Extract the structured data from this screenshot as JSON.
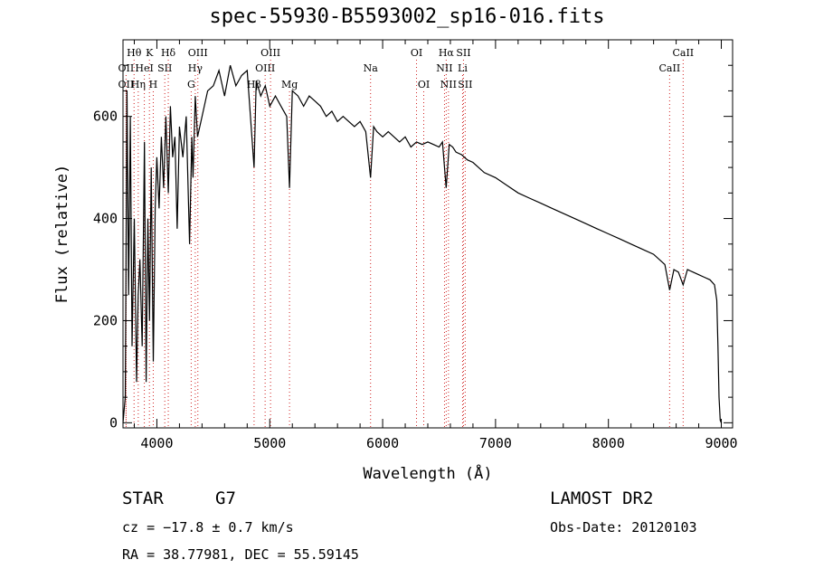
{
  "title": "spec-55930-B5593002_sp16-016.fits",
  "info": {
    "class": "STAR",
    "subclass": "G7",
    "cz": "cz = −17.8 ± 0.7 km/s",
    "radec": "RA =  38.77981, DEC =  55.59145",
    "survey": "LAMOST DR2",
    "obsdate": "Obs-Date: 20120103"
  },
  "chart_data": {
    "type": "line",
    "title": "spec-55930-B5593002_sp16-016.fits",
    "xlabel": "Wavelength (Å)",
    "ylabel": "Flux (relative)",
    "xlim": [
      3700,
      9100
    ],
    "ylim": [
      -10,
      750
    ],
    "xticks": [
      4000,
      5000,
      6000,
      7000,
      8000,
      9000
    ],
    "yticks": [
      0,
      200,
      400,
      600
    ],
    "grid": false,
    "series": [
      {
        "x": [
          3700,
          3720,
          3735,
          3750,
          3765,
          3780,
          3800,
          3820,
          3835,
          3850,
          3870,
          3890,
          3905,
          3920,
          3935,
          3950,
          3968,
          3985,
          4000,
          4020,
          4040,
          4060,
          4080,
          4101,
          4120,
          4140,
          4160,
          4180,
          4200,
          4230,
          4260,
          4290,
          4310,
          4320,
          4340,
          4360,
          4400,
          4450,
          4500,
          4550,
          4600,
          4650,
          4700,
          4750,
          4800,
          4861,
          4880,
          4920,
          4960,
          5000,
          5050,
          5100,
          5150,
          5175,
          5200,
          5250,
          5300,
          5350,
          5400,
          5450,
          5500,
          5550,
          5600,
          5650,
          5700,
          5750,
          5800,
          5850,
          5893,
          5920,
          5950,
          6000,
          6050,
          6100,
          6150,
          6200,
          6250,
          6300,
          6350,
          6400,
          6450,
          6500,
          6530,
          6563,
          6590,
          6620,
          6650,
          6700,
          6750,
          6800,
          6900,
          7000,
          7100,
          7200,
          7300,
          7400,
          7500,
          7600,
          7700,
          7800,
          7900,
          8000,
          8100,
          8200,
          8300,
          8400,
          8500,
          8542,
          8580,
          8620,
          8662,
          8700,
          8750,
          8800,
          8850,
          8900,
          8940,
          8960,
          8970,
          8980,
          8990,
          9000,
          9005
        ],
        "y": [
          0,
          50,
          650,
          250,
          600,
          150,
          400,
          80,
          250,
          320,
          150,
          550,
          80,
          400,
          200,
          500,
          120,
          420,
          520,
          420,
          560,
          460,
          600,
          450,
          620,
          520,
          560,
          380,
          580,
          520,
          600,
          350,
          560,
          480,
          640,
          560,
          600,
          650,
          660,
          690,
          640,
          700,
          660,
          680,
          690,
          500,
          670,
          640,
          660,
          620,
          640,
          620,
          600,
          460,
          650,
          640,
          620,
          640,
          630,
          620,
          600,
          610,
          590,
          600,
          590,
          580,
          590,
          570,
          480,
          580,
          570,
          560,
          570,
          560,
          550,
          560,
          540,
          550,
          545,
          550,
          545,
          540,
          550,
          460,
          545,
          540,
          530,
          525,
          515,
          510,
          490,
          480,
          465,
          450,
          440,
          430,
          420,
          410,
          400,
          390,
          380,
          370,
          360,
          350,
          340,
          330,
          310,
          260,
          300,
          295,
          270,
          300,
          295,
          290,
          285,
          280,
          270,
          240,
          150,
          50,
          5,
          0,
          0
        ]
      }
    ],
    "lines": [
      {
        "label": "Hθ",
        "x": 3798,
        "row": 0
      },
      {
        "label": "K",
        "x": 3934,
        "row": 0
      },
      {
        "label": "Hδ",
        "x": 4101,
        "row": 0
      },
      {
        "label": "OIII",
        "x": 4363,
        "row": 0
      },
      {
        "label": "OIII",
        "x": 5007,
        "row": 0
      },
      {
        "label": "OI",
        "x": 6300,
        "row": 0
      },
      {
        "label": "Hα",
        "x": 6563,
        "row": 0
      },
      {
        "label": "SII",
        "x": 6716,
        "row": 0
      },
      {
        "label": "CaII",
        "x": 8662,
        "row": 0
      },
      {
        "label": "OII",
        "x": 3727,
        "row": 1
      },
      {
        "label": "HeI",
        "x": 3889,
        "row": 1
      },
      {
        "label": "SII",
        "x": 4070,
        "row": 1
      },
      {
        "label": "Hγ",
        "x": 4340,
        "row": 1
      },
      {
        "label": "OIII",
        "x": 4959,
        "row": 1
      },
      {
        "label": "Na",
        "x": 5893,
        "row": 1
      },
      {
        "label": "NII",
        "x": 6548,
        "row": 1
      },
      {
        "label": "Li",
        "x": 6708,
        "row": 1
      },
      {
        "label": "CaII",
        "x": 8542,
        "row": 1
      },
      {
        "label": "OII",
        "x": 3727,
        "row": 2
      },
      {
        "label": "Hη",
        "x": 3835,
        "row": 2
      },
      {
        "label": "H",
        "x": 3968,
        "row": 2
      },
      {
        "label": "G",
        "x": 4304,
        "row": 2
      },
      {
        "label": "Hβ",
        "x": 4861,
        "row": 2
      },
      {
        "label": "Mg",
        "x": 5175,
        "row": 2
      },
      {
        "label": "OI",
        "x": 6364,
        "row": 2
      },
      {
        "label": "NII",
        "x": 6583,
        "row": 2
      },
      {
        "label": "SII",
        "x": 6731,
        "row": 2
      }
    ]
  }
}
